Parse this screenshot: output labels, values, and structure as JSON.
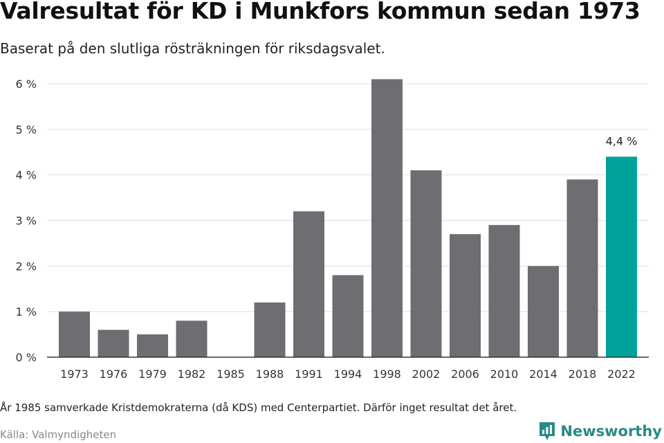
{
  "title": "Valresultat för KD i Munkfors kommun sedan 1973",
  "subtitle": "Baserat på den slutliga rösträkningen för riksdagsvalet.",
  "note": "År 1985 samverkade Kristdemokraterna (då KDS) med Centerpartiet. Därför inget resultat det året.",
  "source": "Källa: Valmyndigheten",
  "brand": {
    "name": "Newsworthy",
    "icon": "newsworthy-logo-icon"
  },
  "colors": {
    "bar": "#6e6d72",
    "highlight": "#00a39a",
    "grid": "#dddddd",
    "axis": "#333333",
    "brand": "#2a8a86"
  },
  "chart_data": {
    "type": "bar",
    "categories": [
      "1973",
      "1976",
      "1979",
      "1982",
      "1985",
      "1988",
      "1991",
      "1994",
      "1998",
      "2002",
      "2006",
      "2010",
      "2014",
      "2018",
      "2022"
    ],
    "values": [
      1.0,
      0.6,
      0.5,
      0.8,
      null,
      1.2,
      3.2,
      1.8,
      6.1,
      4.1,
      2.7,
      2.9,
      2.0,
      3.9,
      4.4
    ],
    "highlight_category": "2022",
    "annotations": [
      {
        "category": "2022",
        "text": "4,4 %"
      }
    ],
    "yticks": [
      "0 %",
      "1 %",
      "2 %",
      "3 %",
      "4 %",
      "5 %",
      "6 %"
    ],
    "ylim": [
      0,
      6
    ],
    "xlabel": "",
    "ylabel": "",
    "grid": true,
    "legend": "none"
  }
}
